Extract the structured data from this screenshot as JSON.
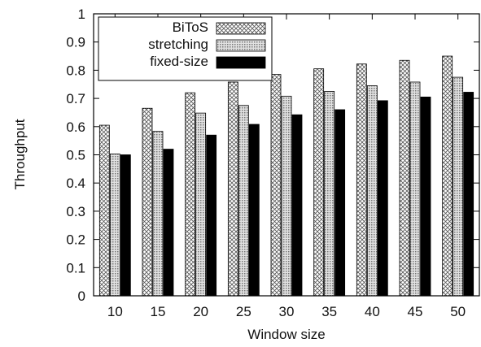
{
  "chart_data": {
    "type": "bar",
    "title": "",
    "xlabel": "Window size",
    "ylabel": "Throughput",
    "ylim": [
      0,
      1
    ],
    "yticks": [
      "0",
      "0.1",
      "0.2",
      "0.3",
      "0.4",
      "0.5",
      "0.6",
      "0.7",
      "0.8",
      "0.9",
      "1"
    ],
    "categories": [
      "10",
      "15",
      "20",
      "25",
      "30",
      "35",
      "40",
      "45",
      "50"
    ],
    "legend_position": "top-left",
    "grid": false,
    "series": [
      {
        "name": "BiToS",
        "pattern": "crosshatch",
        "values": [
          0.605,
          0.665,
          0.72,
          0.758,
          0.785,
          0.805,
          0.822,
          0.835,
          0.85
        ]
      },
      {
        "name": "stretching",
        "pattern": "dots",
        "values": [
          0.503,
          0.583,
          0.648,
          0.675,
          0.708,
          0.725,
          0.745,
          0.758,
          0.775
        ]
      },
      {
        "name": "fixed-size",
        "pattern": "solid",
        "color": "#000000",
        "values": [
          0.5,
          0.52,
          0.57,
          0.608,
          0.642,
          0.66,
          0.692,
          0.705,
          0.722
        ]
      }
    ]
  }
}
